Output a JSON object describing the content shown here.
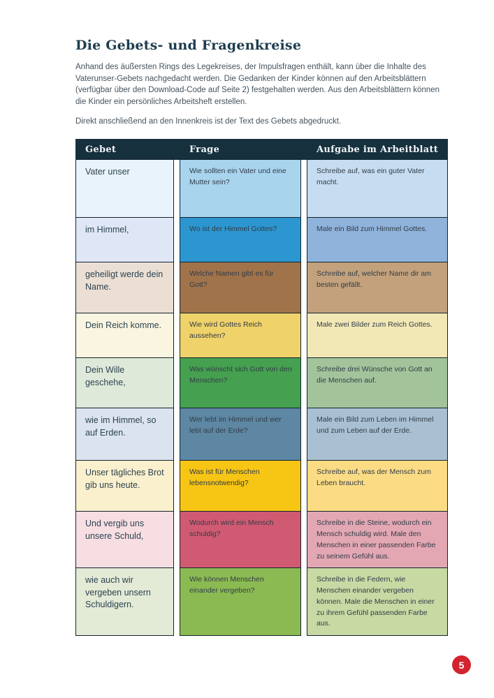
{
  "page": {
    "title": "Die Gebets- und Fragenkreise",
    "paragraphs": [
      "Anhand des äußersten Rings des Legekreises, der Impulsfragen enthält, kann über die Inhalte des Vaterunser-Gebets nachgedacht werden. Die Gedanken der Kinder können auf den Arbeitsblättern (verfügbar über den Download-Code auf Seite 2) festgehalten werden. Aus den Arbeitsblättern können die Kinder ein persönliches Arbeitsheft erstellen.",
      "Direkt anschließend an den Innenkreis ist der Text des Gebets abgedruckt."
    ],
    "page_number": "5"
  },
  "colors": {
    "title_text": "#1e3d4f",
    "body_text": "#44525c",
    "table_header_bg": "#16303e",
    "table_header_text": "#f3f6f8",
    "cell_border": "#12232e",
    "page_badge_bg": "#d2232e",
    "page_badge_text": "#ffffff"
  },
  "table": {
    "headers": [
      "Gebet",
      "Frage",
      "Aufgabe im Arbeitblatt"
    ],
    "rows": [
      {
        "gebet": "Vater unser",
        "frage": "Wie sollten ein Vater und eine Mutter sein?",
        "aufgabe": "Schreibe auf, was ein guter Vater macht.",
        "colors": {
          "c1": "#e9f3fb",
          "c2": "#a9d4ee",
          "c3": "#c6ddf1"
        },
        "min_height": 83
      },
      {
        "gebet": "im Himmel,",
        "frage": "Wo ist der Himmel Gottes?",
        "aufgabe": "Male ein Bild zum Himmel Gottes.",
        "colors": {
          "c1": "#dfe7f6",
          "c2": "#2c96d1",
          "c3": "#8fb3da"
        },
        "min_height": 64
      },
      {
        "gebet": "geheiligt werde dein Name.",
        "frage": "Welche Namen gibt es für Gott?",
        "aufgabe": "Schreibe auf, welcher Name dir am besten gefällt.",
        "colors": {
          "c1": "#ebdfd4",
          "c2": "#a1734a",
          "c3": "#c2a17c"
        },
        "min_height": 73
      },
      {
        "gebet": "Dein Reich komme.",
        "frage": "Wie wird Gottes Reich aussehen?",
        "aufgabe": "Male zwei Bilder zum Reich Gottes.",
        "colors": {
          "c1": "#faf5e0",
          "c2": "#efd269",
          "c3": "#f2e8b5"
        },
        "min_height": 64
      },
      {
        "gebet": "Dein Wille geschehe,",
        "frage": "Was wünscht sich Gott von den Menschen?",
        "aufgabe": "Schreibe drei Wünsche von Gott an die Menschen auf.",
        "colors": {
          "c1": "#dfe9da",
          "c2": "#45a04f",
          "c3": "#a3c49b"
        },
        "min_height": 72
      },
      {
        "gebet": "wie im Himmel, so auf Erden.",
        "frage": "Wer lebt im Himmel und wer lebt auf der Erde?",
        "aufgabe": "Male ein Bild zum Leben im Himmel und zum Leben auf der Erde.",
        "colors": {
          "c1": "#dbe4ee",
          "c2": "#5d87a3",
          "c3": "#a9c0d2"
        },
        "min_height": 75
      },
      {
        "gebet": "Unser tägliches Brot gib uns heute.",
        "frage": "Was ist für Menschen lebensnotwendig?",
        "aufgabe": "Schreibe auf, was der Mensch zum Leben braucht.",
        "colors": {
          "c1": "#fbf0cd",
          "c2": "#f7c513",
          "c3": "#fbdc84"
        },
        "min_height": 73
      },
      {
        "gebet": "Und vergib uns unsere Schuld,",
        "frage": "Wodurch wird ein Mensch schuldig?",
        "aufgabe": "Schreibe in die Steine, wodurch ein Mensch schuldig wird. Male den Menschen in einer passenden Farbe zu seinem Gefühl aus.",
        "colors": {
          "c1": "#f7dee3",
          "c2": "#d05a72",
          "c3": "#e3a7b3"
        },
        "min_height": 80
      },
      {
        "gebet": "wie auch wir vergeben unsern Schuldigern.",
        "frage": "Wie können Menschen einander vergeben?",
        "aufgabe": "Schreibe in die Federn, wie Menschen einander vergeben können. Male die Menschen in einer zu ihrem Gefühl passenden Farbe aus.",
        "colors": {
          "c1": "#e3ead6",
          "c2": "#8cba52",
          "c3": "#c8d9a3"
        },
        "min_height": 97
      }
    ]
  }
}
